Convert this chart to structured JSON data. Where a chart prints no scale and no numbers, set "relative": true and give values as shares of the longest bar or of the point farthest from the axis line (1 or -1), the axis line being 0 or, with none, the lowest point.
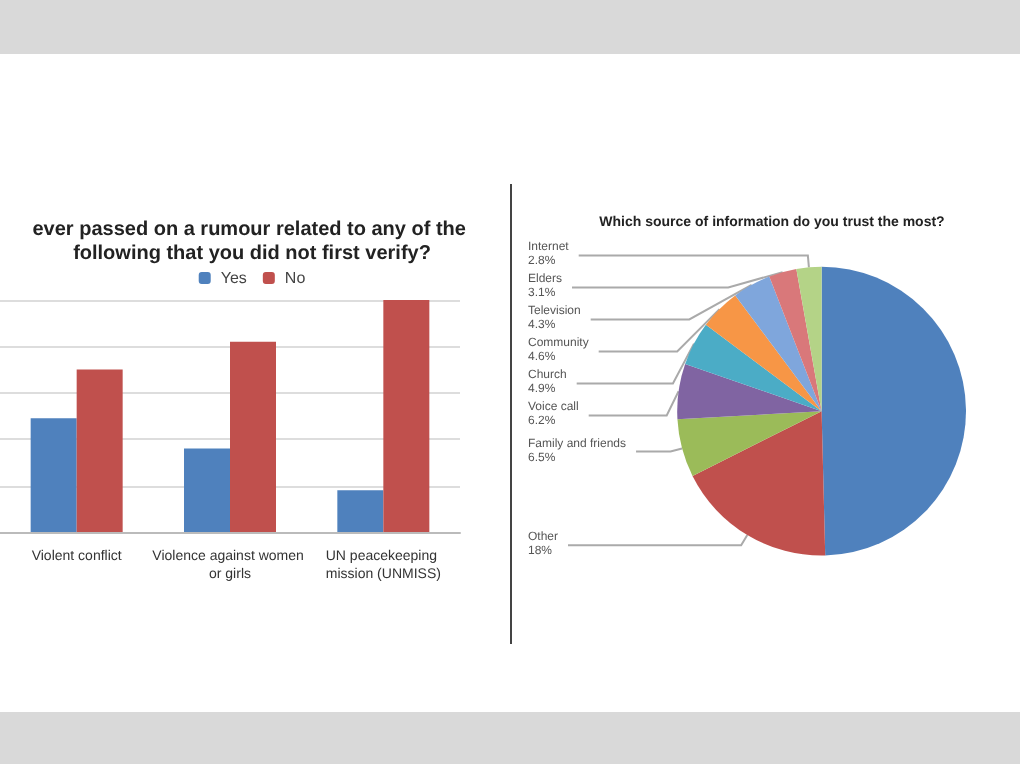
{
  "chart_data": [
    {
      "type": "bar",
      "title": "ever passed on a rumour related to any of the following that you did not first verify?",
      "categories": [
        "Violent conflict",
        "Violence against women or girls",
        "UN peacekeeping mission (UNMISS)"
      ],
      "relative": true,
      "grid": "y",
      "legend": "top",
      "series": [
        {
          "name": "Yes",
          "color": "#4f81bd",
          "values": [
            0.49,
            0.36,
            0.18
          ]
        },
        {
          "name": "No",
          "color": "#c0504d",
          "values": [
            0.7,
            0.82,
            1
          ]
        }
      ]
    },
    {
      "type": "pie",
      "title": "Which source of information do you trust the most?",
      "value_labels": [
        null,
        "18%",
        "6.5%",
        "6.2%",
        "4.9%",
        "4.6%",
        "4.3%",
        "3.1%",
        "2.8%"
      ],
      "categories": [
        null,
        "Other",
        "Family and friends",
        "Voice call",
        "Church",
        "Community",
        "Television",
        "Elders",
        "Internet"
      ],
      "values": [
        49.6,
        18,
        6.5,
        6.2,
        4.9,
        4.6,
        4.3,
        3.1,
        2.8
      ],
      "colors": [
        "#4f81bd",
        "#c0504d",
        "#9bbb59",
        "#8064a2",
        "#4bacc6",
        "#f79646",
        "#7fa6dc",
        "#d9787a",
        "#b4d387"
      ]
    }
  ]
}
